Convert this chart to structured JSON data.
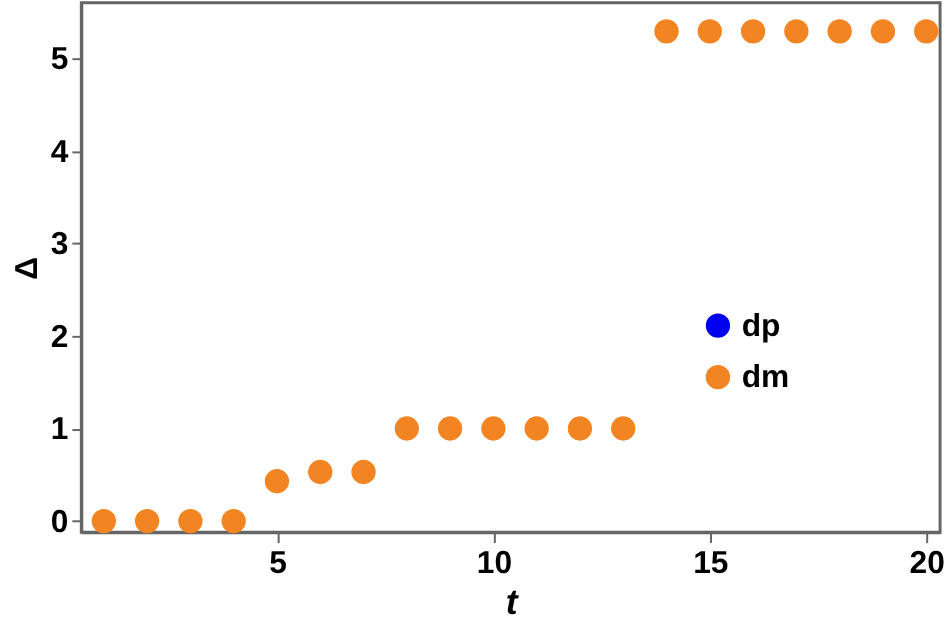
{
  "chart_data": {
    "type": "scatter",
    "xlabel": "t",
    "ylabel": "Δ",
    "x": [
      1,
      2,
      3,
      4,
      5,
      6,
      7,
      8,
      9,
      10,
      11,
      12,
      13,
      14,
      15,
      16,
      17,
      18,
      19,
      20
    ],
    "series": [
      {
        "name": "dp",
        "color": "#0000ee",
        "values": [
          null,
          null,
          null,
          null,
          null,
          null,
          null,
          null,
          null,
          null,
          null,
          null,
          null,
          null,
          null,
          null,
          null,
          null,
          null,
          null
        ]
      },
      {
        "name": "dm",
        "color": "#f28522",
        "values": [
          0,
          0,
          0,
          0,
          0.43,
          0.53,
          0.53,
          1,
          1,
          1,
          1,
          1,
          1,
          5.29,
          5.29,
          5.29,
          5.29,
          5.29,
          5.29,
          5.29
        ]
      }
    ],
    "xlim": [
      0.48,
      20.32
    ],
    "xticks": [
      5,
      10,
      15,
      20
    ],
    "ylim": [
      -0.12,
      5.6
    ],
    "yticks": [
      0,
      1,
      2,
      3,
      4,
      5
    ],
    "marker": "circle",
    "grid": false,
    "legend": "right"
  }
}
